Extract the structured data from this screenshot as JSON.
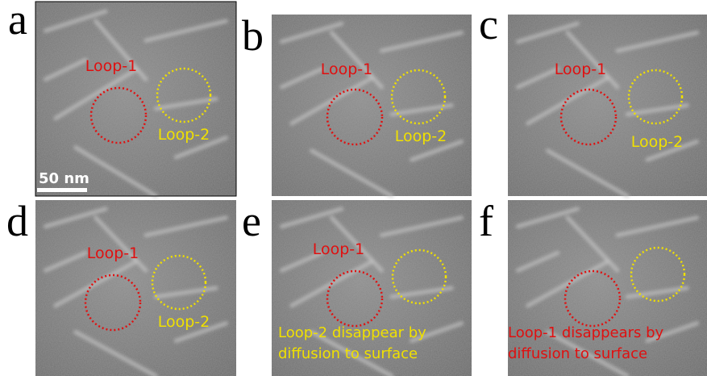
{
  "panels": [
    {
      "letter": "a",
      "loop_labels": [
        "Loop-1",
        "Loop-2"
      ],
      "scale_bar": "50 nm"
    },
    {
      "letter": "b",
      "loop_labels": [
        "Loop-1",
        "Loop-2"
      ]
    },
    {
      "letter": "c",
      "loop_labels": [
        "Loop-1",
        "Loop-2"
      ]
    },
    {
      "letter": "d",
      "loop_labels": [
        "Loop-1",
        "Loop-2"
      ]
    },
    {
      "letter": "e",
      "loop_labels": [
        "Loop-1"
      ],
      "annotation": [
        "Loop-2 disappear by",
        "diffusion to surface"
      ]
    },
    {
      "letter": "f",
      "annotation": [
        "Loop-1 disappears by",
        "diffusion to surface"
      ]
    }
  ]
}
